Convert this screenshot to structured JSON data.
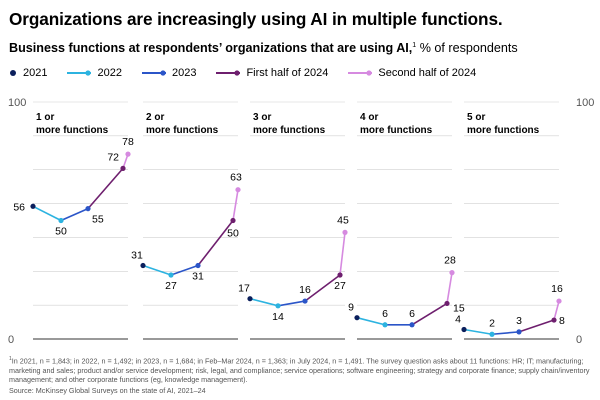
{
  "title": "Organizations are increasingly using AI in multiple functions.",
  "subtitle_bold": "Business functions at respondents’ organizations that are using AI,",
  "subtitle_note": "1",
  "subtitle_unit": " % of respondents",
  "colors": {
    "2021": "#0b1f5c",
    "2022": "#2cb3e0",
    "2023": "#2b55c8",
    "H1 2024": "#6e1f6e",
    "H2 2024": "#d68ae0",
    "grid": "#d0d0d0",
    "axis": "#333333"
  },
  "chart_data": {
    "type": "line",
    "title": "Business functions at respondents’ organizations that are using AI, % of respondents",
    "x": [
      "2021",
      "2022",
      "2023",
      "First half of 2024",
      "Second half of 2024"
    ],
    "ylim": [
      0,
      100
    ],
    "y_ticks_left": [
      "100",
      "0"
    ],
    "y_ticks_right": [
      "100",
      "0"
    ],
    "grid": true,
    "legend": "top-left",
    "legend_entries": [
      "2021",
      "2022",
      "2023",
      "First half of 2024",
      "Second half of 2024"
    ],
    "panels": [
      {
        "label": "1 or more functions",
        "values": [
          56,
          50,
          55,
          72,
          78
        ]
      },
      {
        "label": "2 or more functions",
        "values": [
          31,
          27,
          31,
          50,
          63
        ]
      },
      {
        "label": "3 or more functions",
        "values": [
          17,
          14,
          16,
          27,
          45
        ]
      },
      {
        "label": "4 or more functions",
        "values": [
          9,
          6,
          6,
          15,
          28
        ]
      },
      {
        "label": "5 or more functions",
        "values": [
          4,
          2,
          3,
          8,
          16
        ]
      }
    ]
  },
  "footnote_marker": "1",
  "footnote": "In 2021, n = 1,843; in 2022, n = 1,492; in 2023, n = 1,684; in Feb–Mar 2024, n = 1,363; in July 2024, n = 1,491. The survey question asks about 11 functions: HR; IT; manufacturing; marketing and sales; product and/or service development; risk, legal, and compliance; service operations; software engineering; strategy and corporate finance; supply chain/inventory management; and other corporate functions (eg, knowledge management).",
  "source": "Source: McKinsey Global Surveys on the state of AI, 2021–24"
}
